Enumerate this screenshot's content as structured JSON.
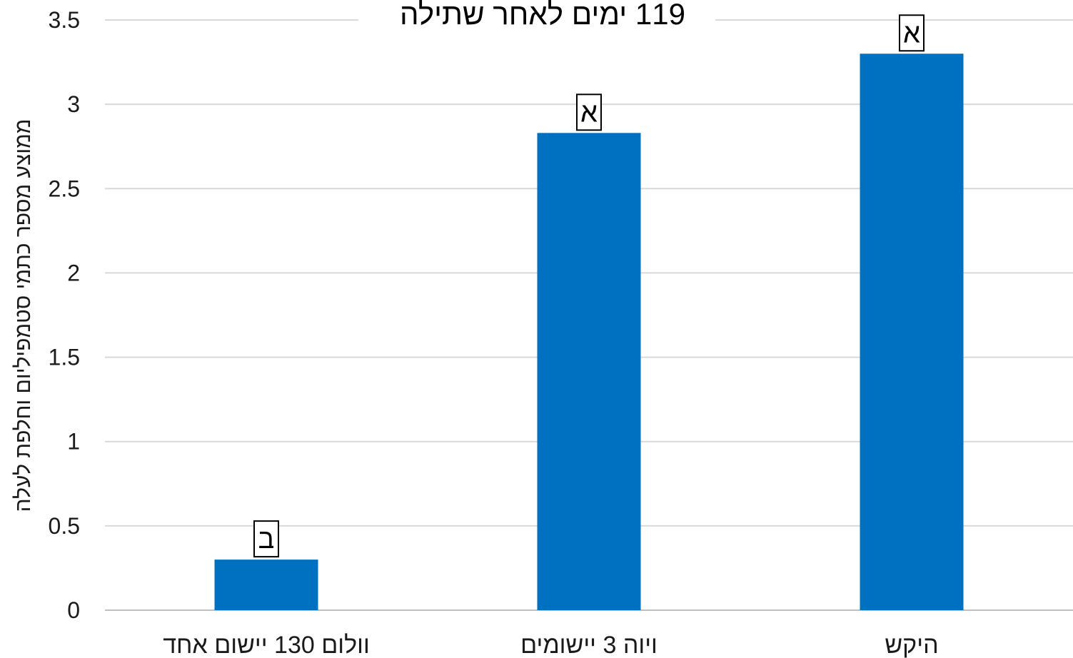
{
  "chart_data": {
    "type": "bar",
    "title": "119 ימים לאחר שתילה",
    "ylabel": "ממוצע מספר כתמי סטמפיליום וחלפת לעלה",
    "xlabel": "",
    "categories": [
      "וולום 130 יישום אחד",
      "ויוה 3 יישומים",
      "היקש"
    ],
    "values": [
      0.3,
      2.83,
      3.3
    ],
    "value_labels": [
      "ב",
      "א",
      "א"
    ],
    "ylim": [
      0,
      3.5
    ],
    "yticks": [
      0,
      0.5,
      1,
      1.5,
      2,
      2.5,
      3,
      3.5
    ],
    "ytick_labels": [
      "0",
      "0.5",
      "1",
      "1.5",
      "2",
      "2.5",
      "3",
      "3.5"
    ],
    "grid": true,
    "legend": "none",
    "colors": {
      "bar": "#0070C0",
      "grid": "#D9D9D9",
      "axis": "#BFBFBF"
    }
  }
}
